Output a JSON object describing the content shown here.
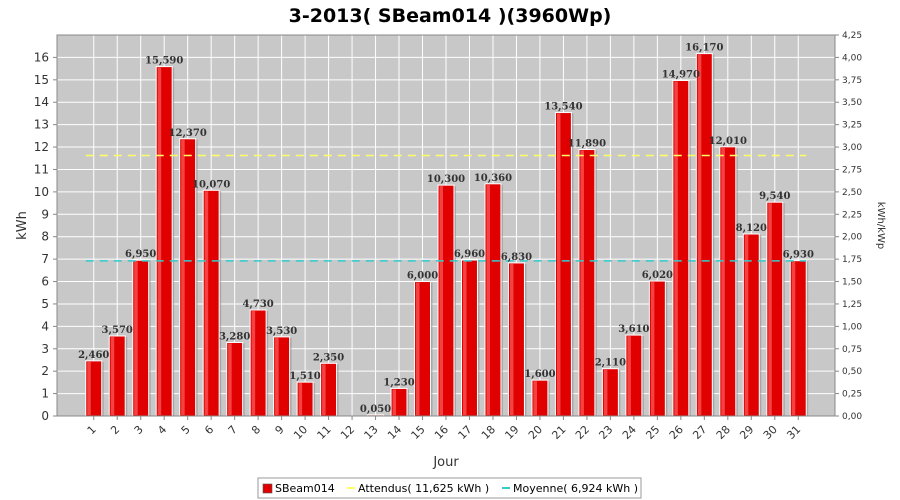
{
  "chart_data": {
    "type": "bar",
    "title": "3-2013( SBeam014 )(3960Wp)",
    "xlabel": "Jour",
    "ylabel": "kWh",
    "ylabel_right": "kWh/kWp",
    "ylim": [
      0,
      17
    ],
    "ylim_right": [
      0,
      4.25
    ],
    "yticks": [
      "0",
      "1",
      "2",
      "3",
      "4",
      "5",
      "6",
      "7",
      "8",
      "9",
      "10",
      "11",
      "12",
      "13",
      "14",
      "15",
      "16"
    ],
    "yticks_right": [
      "0,00",
      "0,25",
      "0,50",
      "0,75",
      "1,00",
      "1,25",
      "1,50",
      "1,75",
      "2,00",
      "2,25",
      "2,50",
      "2,75",
      "3,00",
      "3,25",
      "3,50",
      "3,75",
      "4,00",
      "4,25"
    ],
    "categories": [
      "1",
      "2",
      "3",
      "4",
      "5",
      "6",
      "7",
      "8",
      "9",
      "10",
      "11",
      "12",
      "13",
      "14",
      "15",
      "16",
      "17",
      "18",
      "19",
      "20",
      "21",
      "22",
      "23",
      "24",
      "25",
      "26",
      "27",
      "28",
      "29",
      "30",
      "31"
    ],
    "series": [
      {
        "name": "SBeam014",
        "values": [
          2.46,
          3.57,
          6.95,
          15.59,
          12.37,
          10.07,
          3.28,
          4.73,
          3.53,
          1.51,
          2.35,
          0,
          0.05,
          1.23,
          6.0,
          10.3,
          6.96,
          10.36,
          6.83,
          1.6,
          13.54,
          11.89,
          2.11,
          3.61,
          6.02,
          14.97,
          16.17,
          12.01,
          8.12,
          9.54,
          6.93
        ],
        "labels": [
          "2,460",
          "3,570",
          "6,950",
          "15,590",
          "12,370",
          "10,070",
          "3,280",
          "4,730",
          "3,530",
          "1,510",
          "2,350",
          "",
          "0,050",
          "1,230",
          "6,000",
          "10,300",
          "6,960",
          "10,360",
          "6,830",
          "1,600",
          "13,540",
          "11,890",
          "2,110",
          "3,610",
          "6,020",
          "14,970",
          "16,170",
          "12,010",
          "8,120",
          "9,540",
          "6,930"
        ],
        "color": "#e00000"
      }
    ],
    "lines": [
      {
        "name": "Attendus( 11,625 kWh )",
        "value": 11.625,
        "color": "#ffff66"
      },
      {
        "name": "Moyenne( 6,924 kWh )",
        "value": 6.924,
        "color": "#33cccc"
      }
    ],
    "grid": true,
    "legend": "bottom-center",
    "plot_background": "#c8c8c8"
  }
}
